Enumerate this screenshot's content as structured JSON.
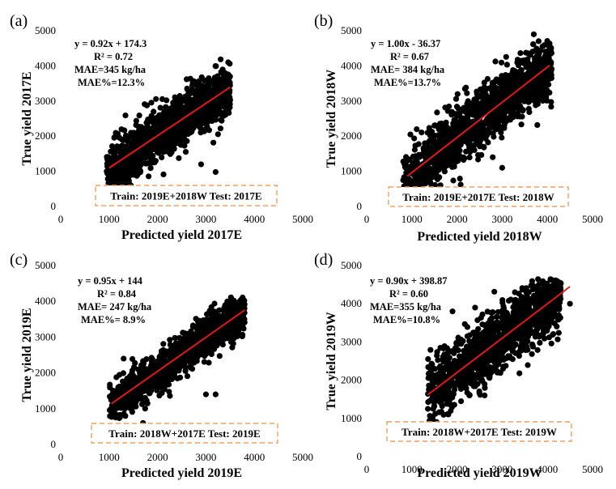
{
  "colors": {
    "points": "#000000",
    "fit_line": "#e01a1a",
    "split_box": "#f0a060"
  },
  "chart_data": [
    {
      "type": "scatter",
      "panel": "(a)",
      "xlabel": "Predicted yield 2017E",
      "ylabel": "True yield 2017E",
      "xlim": [
        0,
        5000
      ],
      "ylim": [
        0,
        5000
      ],
      "xticks": [
        "0",
        "1000",
        "2000",
        "3000",
        "4000",
        "5000"
      ],
      "yticks": [
        "0",
        "1000",
        "2000",
        "3000",
        "4000",
        "5000"
      ],
      "annotations": [
        "y = 0.92x + 174.3",
        "R² = 0.72",
        "MAE=345 kg/ha",
        "MAE%=12.3%"
      ],
      "split": "Train: 2019E+2018W   Test: 2017E",
      "fit": {
        "slope": 0.92,
        "intercept": 174.3,
        "x_range": [
          1000,
          3500
        ]
      },
      "cloud": {
        "x_range": [
          950,
          3500
        ],
        "resid_sd": 360,
        "y_min": 550,
        "y_max": 4250
      },
      "outliers": [
        [
          3200,
          980
        ],
        [
          2900,
          1200
        ],
        [
          1050,
          500
        ]
      ]
    },
    {
      "type": "scatter",
      "panel": "(b)",
      "xlabel": "Predicted yield 2018W",
      "ylabel": "True yield 2018W",
      "xlim": [
        0,
        5000
      ],
      "ylim": [
        0,
        5000
      ],
      "xticks": [
        "0",
        "1000",
        "2000",
        "3000",
        "4000",
        "5000"
      ],
      "yticks": [
        "0",
        "1000",
        "2000",
        "3000",
        "4000",
        "5000"
      ],
      "annotations": [
        "y = 1.00x - 36.37",
        "R² = 0.67",
        "MAE= 384 kg/ha",
        "MAE%=13.7%"
      ],
      "split": "Train: 2019E+2017E   Test: 2018W",
      "fit": {
        "slope": 1.0,
        "intercept": -36.37,
        "x_range": [
          900,
          4050
        ]
      },
      "cloud": {
        "x_range": [
          800,
          4100
        ],
        "resid_sd": 450,
        "y_min": 500,
        "y_max": 4900
      },
      "outliers": [
        [
          1500,
          2300
        ],
        [
          3700,
          4900
        ],
        [
          3000,
          1100
        ]
      ]
    },
    {
      "type": "scatter",
      "panel": "(c)",
      "xlabel": "Predicted yield 2019E",
      "ylabel": "True yield 2019E",
      "xlim": [
        0,
        5000
      ],
      "ylim": [
        0,
        5000
      ],
      "xticks": [
        "0",
        "1000",
        "2000",
        "3000",
        "4000",
        "5000"
      ],
      "yticks": [
        "0",
        "1000",
        "2000",
        "3000",
        "4000",
        "5000"
      ],
      "annotations": [
        "y = 0.95x + 144",
        "R² = 0.84",
        "MAE= 247 kg/ha",
        "MAE%= 8.9%"
      ],
      "split": "Train: 2018W+2017E   Test: 2019E",
      "fit": {
        "slope": 0.95,
        "intercept": 144,
        "x_range": [
          1050,
          3800
        ]
      },
      "cloud": {
        "x_range": [
          1000,
          3800
        ],
        "resid_sd": 280,
        "y_min": 550,
        "y_max": 4150
      },
      "outliers": [
        [
          3000,
          1400
        ],
        [
          3200,
          1400
        ],
        [
          1300,
          2400
        ],
        [
          1700,
          600
        ]
      ]
    },
    {
      "type": "scatter",
      "panel": "(d)",
      "xlabel": "Predicted yield 2019W",
      "ylabel": "True yield 2019W",
      "xlim": [
        0,
        5000
      ],
      "ylim": [
        0,
        5000
      ],
      "xticks": [
        "0",
        "1000",
        "2000",
        "3000",
        "4000",
        "5000"
      ],
      "yticks": [
        "0",
        "1000",
        "2000",
        "3000",
        "4000",
        "5000"
      ],
      "annotations": [
        "y = 0.90x + 398.87",
        "R² = 0.60",
        "MAE=355 kg/ha",
        "MAE%=10.8%"
      ],
      "split": "Train: 2018W+2017E   Test: 2019W",
      "fit": {
        "slope": 0.9,
        "intercept": 398.87,
        "x_range": [
          1350,
          4500
        ]
      },
      "cloud": {
        "x_range": [
          1350,
          4300
        ],
        "resid_sd": 420,
        "y_min": 800,
        "y_max": 4650
      },
      "outliers": [
        [
          4500,
          4000
        ],
        [
          2400,
          3900
        ],
        [
          1900,
          3800
        ]
      ]
    }
  ]
}
